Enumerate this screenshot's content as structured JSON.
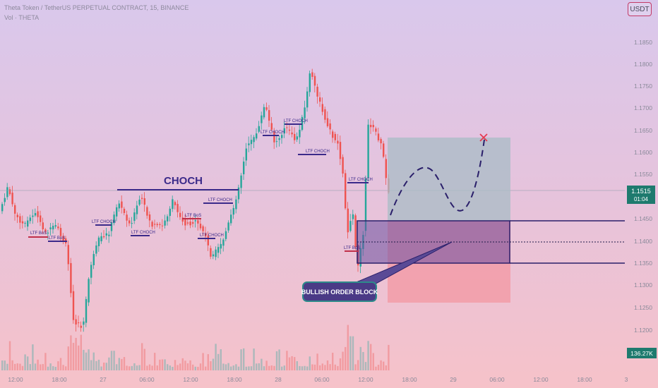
{
  "header": {
    "title": "Theta Token / TetherUS PERPETUAL CONTRACT, 15, BINANCE",
    "volume_label": "Vol · THETA"
  },
  "currency_button": "USDT",
  "price_axis": {
    "ticks": [
      "1.1850",
      "1.1800",
      "1.1750",
      "1.1700",
      "1.1650",
      "1.1600",
      "1.1550",
      "1.1450",
      "1.1400",
      "1.1350",
      "1.1300",
      "1.1250",
      "1.1200"
    ],
    "current_price": "1.1515",
    "countdown": "01:04",
    "volume_badge": "136.27K"
  },
  "time_axis": {
    "ticks": [
      "12:00",
      "18:00",
      "27",
      "06:00",
      "12:00",
      "18:00",
      "28",
      "06:00",
      "12:00",
      "18:00",
      "29",
      "06:00",
      "12:00",
      "18:00",
      "3"
    ]
  },
  "annotations": {
    "choch_main": "CHOCH",
    "ltf_bos_1": "LTF BoS",
    "ltf_bos_2": "LTF BoS",
    "ltf_choch_1": "LTF CHOCH",
    "ltf_choch_2": "LTF CHOCH",
    "ltf_bos_3": "LTF BoS",
    "ltf_choch_3": "LTF CHOCH",
    "ltf_choch_4": "LTF CHOCH",
    "ltf_choch_5": "LTF CHOCH",
    "ltf_choch_6": "LTF CHOCH",
    "ltf_choch_7": "LTF CHOCH",
    "ltf_choch_8": "LTF CHOCH",
    "ltf_bos_4": "LTF BoS",
    "order_block": "BULLISH ORDER BLOCK"
  },
  "colors": {
    "bull": "#26a69a",
    "bear": "#ef5350",
    "order_block": "#6a4fa0",
    "accent": "#3b2a8a",
    "target_zone": "#a8bfc8",
    "stop_zone": "#f29aa5"
  }
}
